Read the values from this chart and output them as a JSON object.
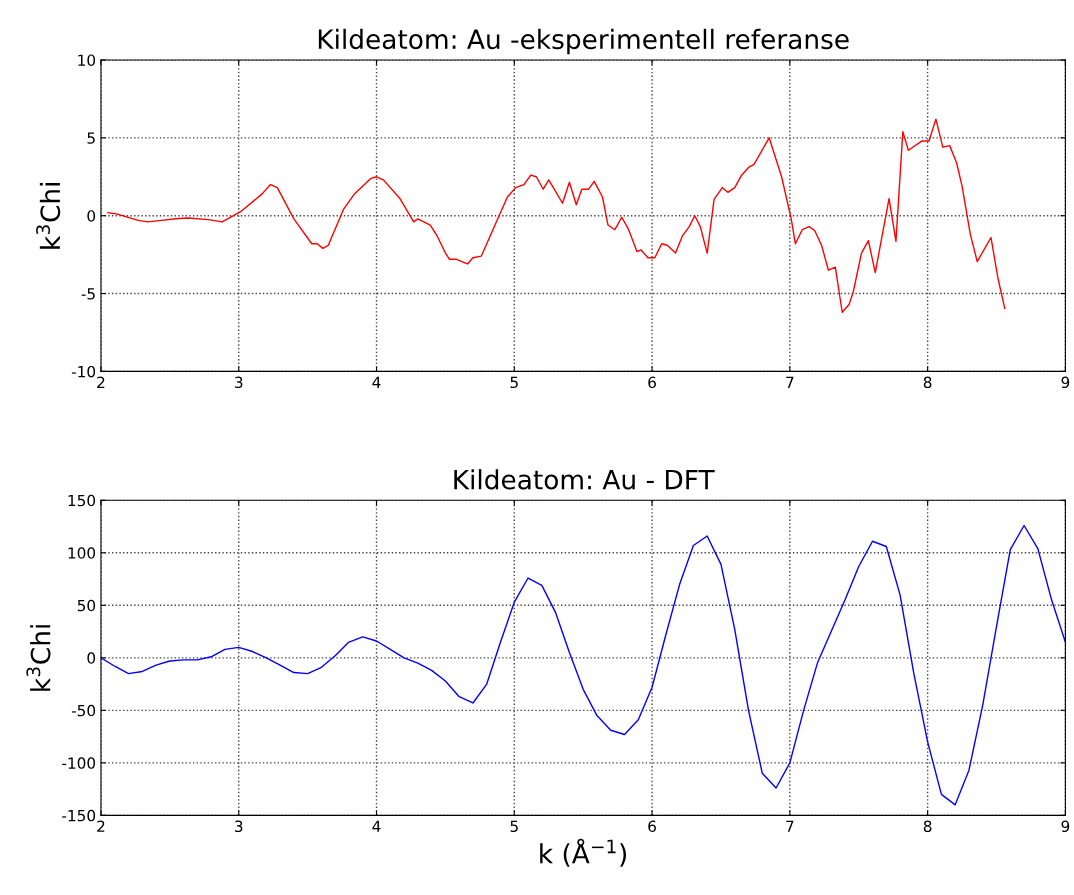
{
  "chart_data": [
    {
      "type": "line",
      "title": "Kildeatom: Au -eksperimentell referanse",
      "ylabel": "k$^{3}$Chi",
      "xlim": [
        2,
        9
      ],
      "xticks": [
        2,
        3,
        4,
        5,
        6,
        7,
        8,
        9
      ],
      "ylim": [
        -10,
        10
      ],
      "yticks": [
        -10,
        -5,
        0,
        5,
        10
      ],
      "grid": true,
      "series": [
        {
          "color": "#ff0000",
          "x": [
            2.05,
            2.12,
            2.27,
            2.34,
            2.44,
            2.54,
            2.63,
            2.78,
            2.88,
            3.02,
            3.17,
            3.23,
            3.28,
            3.4,
            3.53,
            3.57,
            3.61,
            3.65,
            3.76,
            3.84,
            3.96,
            4.0,
            4.05,
            4.17,
            4.27,
            4.3,
            4.39,
            4.44,
            4.5,
            4.53,
            4.58,
            4.66,
            4.7,
            4.76,
            4.8,
            4.86,
            4.95,
            5.01,
            5.07,
            5.12,
            5.16,
            5.21,
            5.25,
            5.35,
            5.4,
            5.45,
            5.49,
            5.54,
            5.58,
            5.64,
            5.68,
            5.73,
            5.78,
            5.83,
            5.89,
            5.92,
            5.97,
            6.02,
            6.07,
            6.11,
            6.17,
            6.22,
            6.27,
            6.31,
            6.35,
            6.4,
            6.45,
            6.51,
            6.55,
            6.6,
            6.65,
            6.7,
            6.74,
            6.85,
            6.94,
            7.01,
            7.04,
            7.09,
            7.14,
            7.18,
            7.23,
            7.28,
            7.33,
            7.38,
            7.43,
            7.46,
            7.52,
            7.57,
            7.62,
            7.72,
            7.77,
            7.82,
            7.86,
            7.96,
            8.01,
            8.06,
            8.11,
            8.16,
            8.21,
            8.25,
            8.31,
            8.36,
            8.46,
            8.51,
            8.56
          ],
          "values": [
            0.2,
            0.1,
            -0.3,
            -0.4,
            -0.3,
            -0.2,
            -0.15,
            -0.25,
            -0.4,
            0.3,
            1.4,
            2.0,
            1.8,
            -0.2,
            -1.8,
            -1.8,
            -2.1,
            -1.9,
            0.4,
            1.4,
            2.4,
            2.5,
            2.3,
            1.1,
            -0.4,
            -0.2,
            -0.6,
            -1.3,
            -2.4,
            -2.8,
            -2.8,
            -3.1,
            -2.7,
            -2.6,
            -1.8,
            -0.6,
            1.2,
            1.8,
            2.0,
            2.6,
            2.5,
            1.7,
            2.3,
            0.8,
            2.15,
            0.7,
            1.7,
            1.7,
            2.2,
            1.2,
            -0.6,
            -0.9,
            -0.1,
            -0.9,
            -2.3,
            -2.2,
            -2.7,
            -2.7,
            -1.8,
            -1.9,
            -2.4,
            -1.3,
            -0.7,
            0.0,
            -0.7,
            -2.4,
            1.05,
            1.8,
            1.5,
            1.8,
            2.6,
            3.1,
            3.3,
            5.0,
            2.5,
            -0.2,
            -1.8,
            -0.9,
            -0.7,
            -0.95,
            -1.9,
            -3.5,
            -3.3,
            -6.2,
            -5.7,
            -4.9,
            -2.4,
            -1.6,
            -3.65,
            1.1,
            -1.65,
            5.4,
            4.2,
            4.8,
            4.8,
            6.2,
            4.4,
            4.5,
            3.4,
            1.9,
            -1.2,
            -2.95,
            -1.4,
            -4.0,
            -5.95
          ]
        }
      ]
    },
    {
      "type": "line",
      "title": "Kildeatom: Au - DFT",
      "xlabel": "k (Å$^{−1}$)",
      "ylabel": "k$^{3}$Chi",
      "xlim": [
        2,
        9
      ],
      "xticks": [
        2,
        3,
        4,
        5,
        6,
        7,
        8,
        9
      ],
      "ylim": [
        -150,
        150
      ],
      "yticks": [
        -150,
        -100,
        -50,
        0,
        50,
        100,
        150
      ],
      "grid": true,
      "series": [
        {
          "color": "#0000ff",
          "x": [
            2.0,
            2.1,
            2.2,
            2.3,
            2.4,
            2.5,
            2.6,
            2.7,
            2.8,
            2.9,
            3.0,
            3.1,
            3.2,
            3.3,
            3.4,
            3.5,
            3.6,
            3.7,
            3.8,
            3.9,
            4.0,
            4.1,
            4.2,
            4.3,
            4.4,
            4.5,
            4.6,
            4.7,
            4.8,
            4.9,
            5.0,
            5.1,
            5.2,
            5.3,
            5.4,
            5.5,
            5.6,
            5.7,
            5.8,
            5.9,
            6.0,
            6.1,
            6.2,
            6.3,
            6.4,
            6.5,
            6.6,
            6.7,
            6.8,
            6.9,
            7.0,
            7.1,
            7.2,
            7.3,
            7.4,
            7.5,
            7.6,
            7.7,
            7.8,
            7.9,
            8.0,
            8.1,
            8.2,
            8.3,
            8.4,
            8.5,
            8.6,
            8.7,
            8.8,
            8.9,
            9.0
          ],
          "values": [
            0,
            -8,
            -15,
            -13,
            -7,
            -3,
            -2,
            -2,
            1,
            8,
            10,
            6,
            0,
            -7,
            -14,
            -15,
            -9,
            2,
            15,
            20,
            16,
            8,
            0,
            -5,
            -12,
            -22,
            -37,
            -43,
            -25,
            15,
            53,
            76,
            69,
            43,
            5,
            -30,
            -55,
            -69,
            -73,
            -59,
            -28,
            22,
            70,
            107,
            116,
            89,
            27,
            -50,
            -110,
            -124,
            -100,
            -50,
            -5,
            25,
            55,
            87,
            111,
            106,
            60,
            -15,
            -80,
            -130,
            -140,
            -107,
            -45,
            30,
            103,
            126,
            104,
            55,
            15
          ]
        }
      ]
    }
  ]
}
